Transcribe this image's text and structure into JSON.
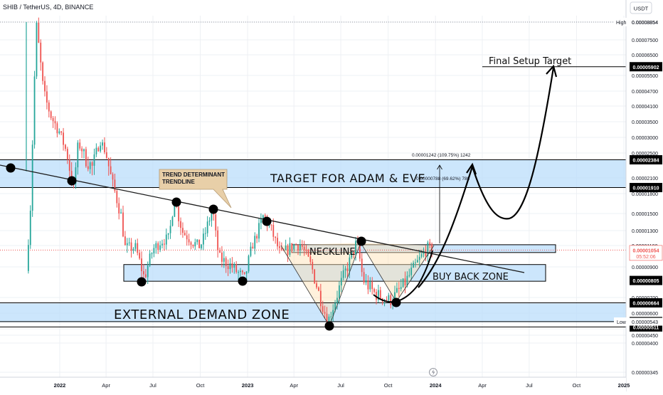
{
  "header": {
    "title": "SHIB / TetherUS, 4D, BINANCE",
    "currency": "USDT"
  },
  "chart_data": {
    "type": "candlestick",
    "symbol": "SHIB / TetherUS",
    "timeframe": "4D",
    "exchange": "BINANCE",
    "currency": "USDT",
    "x_tick_labels": [
      "2022",
      "Apr",
      "Jul",
      "Oct",
      "2023",
      "Apr",
      "Jul",
      "Oct",
      "2024",
      "Apr",
      "Jul",
      "Oct",
      "2025"
    ],
    "y_tick_labels": [
      "0.00008854",
      "0.00007500",
      "0.00006500",
      "0.00005500",
      "0.00004700",
      "0.00004100",
      "0.00003500",
      "0.00003000",
      "0.00002500",
      "0.00002100",
      "0.00001800",
      "0.00001500",
      "0.00001300",
      "0.00001100",
      "0.00000900",
      "0.00000700",
      "0.00000600",
      "0.00000500",
      "0.00000450",
      "0.00000400",
      "0.00000345"
    ],
    "price_labels": {
      "high_tag": "High",
      "high": "0.00008854",
      "final_target": "0.00005902",
      "target_top": "0.00002384",
      "target_bottom": "0.00001910",
      "current": "0.00001054",
      "countdown": "05:52:06",
      "neck_low": "0.00001021",
      "buy_back_bottom": "0.00000805",
      "demand_top": "0.00000664",
      "demand_bottom": "0.00000544",
      "low_tag": "Low",
      "low": "0.00000543",
      "low_line": "0.00000511"
    },
    "price_path": [
      [
        "2021-11-01",
        8.7e-06
      ],
      [
        "2021-11-10",
        1.72e-05
      ],
      [
        "2021-11-20",
        8.86e-05
      ],
      [
        "2021-12-05",
        4.6e-05
      ],
      [
        "2021-12-20",
        3.65e-05
      ],
      [
        "2022-01-05",
        3.15e-05
      ],
      [
        "2022-01-20",
        2.45e-05
      ],
      [
        "2022-02-01",
        1.9e-05
      ],
      [
        "2022-02-10",
        2.8e-05
      ],
      [
        "2022-02-25",
        2.4e-05
      ],
      [
        "2022-03-10",
        2.25e-05
      ],
      [
        "2022-03-25",
        2.9e-05
      ],
      [
        "2022-04-05",
        2.5e-05
      ],
      [
        "2022-04-20",
        1.9e-05
      ],
      [
        "2022-05-05",
        1.45e-05
      ],
      [
        "2022-05-12",
        1.08e-05
      ],
      [
        "2022-06-01",
        1.08e-05
      ],
      [
        "2022-06-18",
        8.2e-06
      ],
      [
        "2022-07-05",
        1.06e-05
      ],
      [
        "2022-07-20",
        1.15e-05
      ],
      [
        "2022-08-05",
        1.2e-05
      ],
      [
        "2022-08-15",
        1.72e-05
      ],
      [
        "2022-09-01",
        1.28e-05
      ],
      [
        "2022-09-20",
        1.14e-05
      ],
      [
        "2022-10-05",
        1.09e-05
      ],
      [
        "2022-10-29",
        1.58e-05
      ],
      [
        "2022-11-10",
        9.8e-06
      ],
      [
        "2022-12-01",
        9.2e-06
      ],
      [
        "2022-12-30",
        8.1e-06
      ],
      [
        "2023-01-15",
        1.12e-05
      ],
      [
        "2023-02-05",
        1.48e-05
      ],
      [
        "2023-02-20",
        1.3e-05
      ],
      [
        "2023-03-10",
        1e-05
      ],
      [
        "2023-04-01",
        1.1e-05
      ],
      [
        "2023-04-18",
        1.12e-05
      ],
      [
        "2023-05-10",
        8.9e-06
      ],
      [
        "2023-06-10",
        5.5e-06
      ],
      [
        "2023-06-30",
        7.4e-06
      ],
      [
        "2023-07-25",
        9.8e-06
      ],
      [
        "2023-08-05",
        1.15e-05
      ],
      [
        "2023-08-17",
        8.1e-06
      ],
      [
        "2023-09-10",
        7.2e-06
      ],
      [
        "2023-10-10",
        6.8e-06
      ],
      [
        "2023-11-05",
        7.8e-06
      ],
      [
        "2023-11-25",
        9e-06
      ],
      [
        "2023-12-10",
        1e-05
      ],
      [
        "2023-12-20",
        1.08e-05
      ],
      [
        "2023-12-28",
        1.054e-05
      ]
    ],
    "projection_path": [
      [
        "2023-12-28",
        1.01e-05
      ],
      [
        "2024-02-15",
        2.1e-05
      ],
      [
        "2024-02-28",
        2.38e-05
      ],
      [
        "2024-04-20",
        1.52e-05
      ],
      [
        "2024-06-10",
        1.9e-05
      ],
      [
        "2024-07-25",
        5.9e-05
      ]
    ],
    "zones": [
      {
        "label": "TARGET FOR ADAM & EVE",
        "from": 1.91e-05,
        "to": 2.38e-05
      },
      {
        "label": "NECKLINE",
        "from": 1.03e-05,
        "to": 1.11e-05
      },
      {
        "label": "BUY BACK ZONE",
        "from": 8e-06,
        "to": 9.2e-06
      },
      {
        "label": "EXTERNAL DEMAND ZONE",
        "from": 5.4e-06,
        "to": 6.6e-06
      }
    ],
    "annotations": {
      "final_target": "Final Setup Target",
      "trendline_callout": [
        "TREND DETERMINANT",
        "TRENDLINE"
      ],
      "measure_big": "0.00001242 (109.75%) 1242",
      "measure_small": "0.00000788 (69.62%) 788",
      "target_zone": "TARGET FOR ADAM & EVE",
      "neckline": "NECKLINE",
      "buy_back": "BUY BACK ZONE",
      "demand": "EXTERNAL DEMAND ZONE"
    },
    "colors": {
      "up": "#26a69a",
      "down": "#ef5350",
      "zone_fill": "#bbdefb",
      "current_price": "#ef5350",
      "drawing": "#000000"
    }
  }
}
